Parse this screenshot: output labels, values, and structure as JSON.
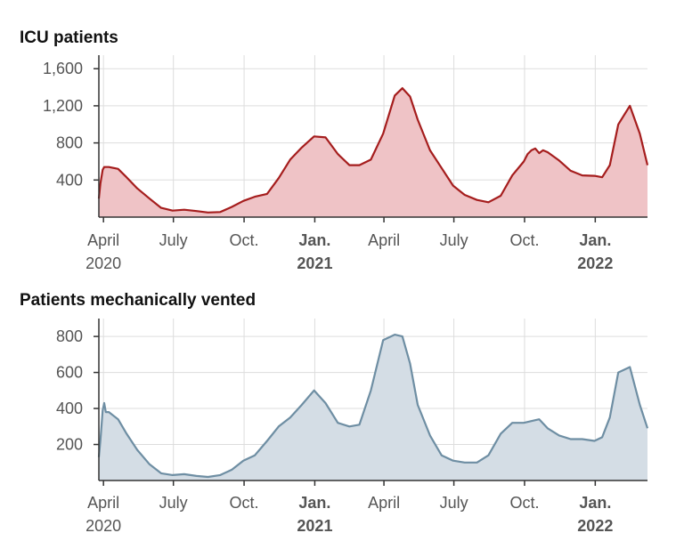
{
  "chart_data": [
    {
      "type": "area",
      "title": "ICU patients",
      "ylim": [
        0,
        1650
      ],
      "yticks": [
        400,
        800,
        1200,
        1600
      ],
      "ytick_labels": [
        "400",
        "800",
        "1,200",
        "1,600"
      ],
      "x_tick_labels": [
        {
          "month": "April",
          "year": "2020",
          "bold": false
        },
        {
          "month": "July",
          "year": "",
          "bold": false
        },
        {
          "month": "Oct.",
          "year": "",
          "bold": false
        },
        {
          "month": "Jan.",
          "year": "2021",
          "bold": true
        },
        {
          "month": "April",
          "year": "",
          "bold": false
        },
        {
          "month": "July",
          "year": "",
          "bold": false
        },
        {
          "month": "Oct.",
          "year": "",
          "bold": false
        },
        {
          "month": "Jan.",
          "year": "2022",
          "bold": true
        }
      ],
      "x_tick_dates": [
        "2020-04-01",
        "2020-07-01",
        "2020-10-01",
        "2021-01-01",
        "2021-04-01",
        "2021-07-01",
        "2021-10-01",
        "2022-01-01"
      ],
      "color_line": "#a51d1d",
      "color_fill": "#efc3c6",
      "x": [
        "2020-03-26",
        "2020-03-28",
        "2020-03-31",
        "2020-04-02",
        "2020-04-08",
        "2020-04-20",
        "2020-05-01",
        "2020-05-15",
        "2020-05-31",
        "2020-06-15",
        "2020-06-30",
        "2020-07-15",
        "2020-07-31",
        "2020-08-15",
        "2020-08-31",
        "2020-09-15",
        "2020-09-30",
        "2020-10-15",
        "2020-10-31",
        "2020-11-15",
        "2020-11-30",
        "2020-12-15",
        "2020-12-31",
        "2021-01-15",
        "2021-01-31",
        "2021-02-15",
        "2021-02-28",
        "2021-03-15",
        "2021-03-31",
        "2021-04-15",
        "2021-04-25",
        "2021-05-05",
        "2021-05-15",
        "2021-05-31",
        "2021-06-15",
        "2021-06-30",
        "2021-07-15",
        "2021-07-31",
        "2021-08-15",
        "2021-08-31",
        "2021-09-15",
        "2021-09-30",
        "2021-10-05",
        "2021-10-10",
        "2021-10-15",
        "2021-10-20",
        "2021-10-25",
        "2021-10-31",
        "2021-11-15",
        "2021-11-30",
        "2021-12-15",
        "2021-12-31",
        "2022-01-10",
        "2022-01-20",
        "2022-01-31",
        "2022-02-15",
        "2022-02-28",
        "2022-03-10"
      ],
      "values": [
        200,
        360,
        510,
        540,
        540,
        520,
        430,
        310,
        200,
        100,
        70,
        80,
        65,
        50,
        55,
        110,
        175,
        220,
        250,
        420,
        620,
        750,
        870,
        860,
        680,
        560,
        560,
        620,
        900,
        1310,
        1390,
        1300,
        1050,
        720,
        530,
        340,
        240,
        185,
        160,
        230,
        450,
        600,
        680,
        720,
        740,
        690,
        720,
        700,
        610,
        500,
        450,
        445,
        430,
        560,
        1000,
        1200,
        900,
        560
      ]
    },
    {
      "type": "area",
      "title": "Patients mechanically vented",
      "ylim": [
        0,
        850
      ],
      "yticks": [
        200,
        400,
        600,
        800
      ],
      "ytick_labels": [
        "200",
        "400",
        "600",
        "800"
      ],
      "x_tick_labels": [
        {
          "month": "April",
          "year": "2020",
          "bold": false
        },
        {
          "month": "July",
          "year": "",
          "bold": false
        },
        {
          "month": "Oct.",
          "year": "",
          "bold": false
        },
        {
          "month": "Jan.",
          "year": "2021",
          "bold": true
        },
        {
          "month": "April",
          "year": "",
          "bold": false
        },
        {
          "month": "July",
          "year": "",
          "bold": false
        },
        {
          "month": "Oct.",
          "year": "",
          "bold": false
        },
        {
          "month": "Jan.",
          "year": "2022",
          "bold": true
        }
      ],
      "x_tick_dates": [
        "2020-04-01",
        "2020-07-01",
        "2020-10-01",
        "2021-01-01",
        "2021-04-01",
        "2021-07-01",
        "2021-10-01",
        "2022-01-01"
      ],
      "color_line": "#6e8ea3",
      "color_fill": "#d4dde5",
      "x": [
        "2020-03-26",
        "2020-03-28",
        "2020-03-31",
        "2020-04-02",
        "2020-04-04",
        "2020-04-08",
        "2020-04-20",
        "2020-05-01",
        "2020-05-15",
        "2020-05-31",
        "2020-06-15",
        "2020-06-30",
        "2020-07-15",
        "2020-07-31",
        "2020-08-15",
        "2020-08-31",
        "2020-09-15",
        "2020-09-30",
        "2020-10-15",
        "2020-10-31",
        "2020-11-15",
        "2020-11-30",
        "2020-12-15",
        "2020-12-31",
        "2021-01-15",
        "2021-01-31",
        "2021-02-15",
        "2021-02-28",
        "2021-03-15",
        "2021-03-31",
        "2021-04-15",
        "2021-04-25",
        "2021-05-05",
        "2021-05-15",
        "2021-05-31",
        "2021-06-15",
        "2021-06-30",
        "2021-07-15",
        "2021-07-31",
        "2021-08-15",
        "2021-08-31",
        "2021-09-15",
        "2021-09-30",
        "2021-10-10",
        "2021-10-20",
        "2021-10-31",
        "2021-11-15",
        "2021-11-30",
        "2021-12-15",
        "2021-12-31",
        "2022-01-10",
        "2022-01-20",
        "2022-01-31",
        "2022-02-15",
        "2022-02-28",
        "2022-03-10"
      ],
      "values": [
        130,
        220,
        390,
        430,
        380,
        380,
        340,
        260,
        170,
        90,
        40,
        30,
        35,
        25,
        20,
        30,
        60,
        110,
        140,
        220,
        300,
        350,
        420,
        500,
        430,
        320,
        300,
        310,
        500,
        780,
        810,
        800,
        650,
        420,
        250,
        140,
        110,
        100,
        100,
        140,
        260,
        320,
        320,
        330,
        340,
        290,
        250,
        230,
        230,
        220,
        240,
        350,
        600,
        630,
        420,
        290
      ]
    }
  ]
}
